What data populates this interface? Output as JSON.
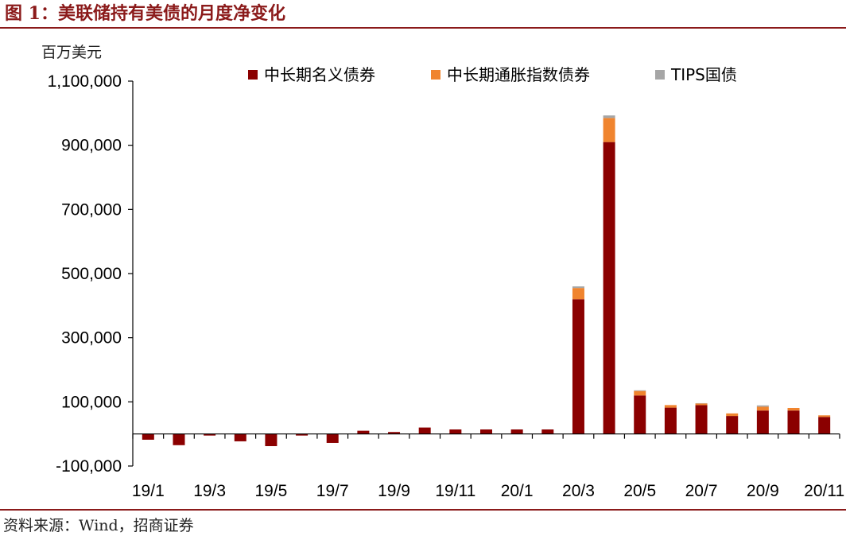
{
  "title": "图 1：美联储持有美债的月度净变化",
  "source": "资料来源：Wind，招商证券",
  "colors": {
    "brand": "#8b1a1a",
    "nominal": "#8b0000",
    "tips_inflation": "#f0842e",
    "tips_treasury": "#a6a6a6"
  },
  "chart_data": {
    "type": "bar",
    "stacked": true,
    "unit_label": "百万美元",
    "categories": [
      "19/1",
      "19/2",
      "19/3",
      "19/4",
      "19/5",
      "19/6",
      "19/7",
      "19/8",
      "19/9",
      "19/10",
      "19/11",
      "19/12",
      "20/1",
      "20/2",
      "20/3",
      "20/4",
      "20/5",
      "20/6",
      "20/7",
      "20/8",
      "20/9",
      "20/10",
      "20/11"
    ],
    "x_tick_labels": [
      "19/1",
      "",
      "19/3",
      "",
      "19/5",
      "",
      "19/7",
      "",
      "19/9",
      "",
      "19/11",
      "",
      "20/1",
      "",
      "20/3",
      "",
      "20/5",
      "",
      "20/7",
      "",
      "20/9",
      "",
      "20/11"
    ],
    "series": [
      {
        "name": "中长期名义债券",
        "color": "#8b0000",
        "values": [
          -18000,
          -35000,
          -5000,
          -23000,
          -38000,
          -5000,
          -28000,
          10000,
          6000,
          20000,
          14000,
          14000,
          14000,
          14000,
          420000,
          910000,
          120000,
          82000,
          90000,
          56000,
          73000,
          73000,
          53000
        ]
      },
      {
        "name": "中长期通胀指数债券",
        "color": "#f0842e",
        "values": [
          0,
          0,
          0,
          0,
          0,
          0,
          0,
          0,
          0,
          0,
          0,
          0,
          0,
          0,
          35000,
          75000,
          14000,
          8000,
          5000,
          8000,
          12000,
          8000,
          5000
        ]
      },
      {
        "name": "TIPS国债",
        "color": "#a6a6a6",
        "values": [
          0,
          0,
          0,
          0,
          0,
          0,
          0,
          0,
          0,
          0,
          0,
          0,
          0,
          0,
          5000,
          8000,
          2000,
          0,
          1000,
          0,
          4000,
          0,
          0
        ]
      }
    ],
    "y_ticks": [
      -100000,
      100000,
      300000,
      500000,
      700000,
      900000,
      1100000
    ],
    "y_tick_labels": [
      "-100,000",
      "100,000",
      "300,000",
      "500,000",
      "700,000",
      "900,000",
      "1,100,000"
    ],
    "ylim": [
      -100000,
      1100000
    ],
    "legend_position": "top"
  }
}
